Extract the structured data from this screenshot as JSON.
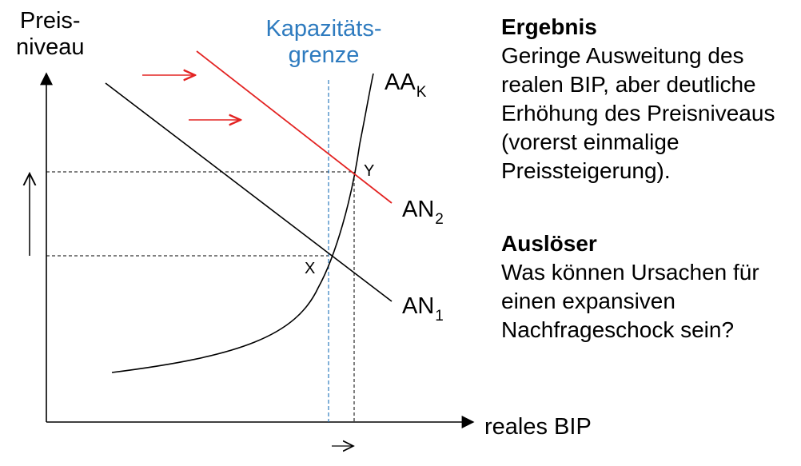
{
  "axes": {
    "y_label_line1": "Preis-",
    "y_label_line2": "niveau",
    "x_label": "reales BIP"
  },
  "capacity": {
    "label_line1": "Kapazitäts-",
    "label_line2": "grenze",
    "color": "#2e7bbf"
  },
  "curves": {
    "aa": {
      "label": "AA",
      "sub": "K",
      "color": "#000000"
    },
    "an1": {
      "label": "AN",
      "sub": "1",
      "color": "#000000"
    },
    "an2": {
      "label": "AN",
      "sub": "2",
      "color": "#e32322"
    }
  },
  "points": {
    "x": "X",
    "y": "Y"
  },
  "colors": {
    "shift_arrow": "#e32322",
    "guide": "#000000"
  },
  "result": {
    "title": "Ergebnis",
    "lines": [
      "Geringe Ausweitung des",
      "realen BIP, aber deutliche",
      "Erhöhung des Preisniveaus",
      "(vorerst einmalige",
      "Preissteigerung)."
    ]
  },
  "trigger": {
    "title": "Auslöser",
    "lines": [
      "Was können Ursachen für",
      "einen expansiven",
      "Nachfrageschock sein?"
    ]
  }
}
